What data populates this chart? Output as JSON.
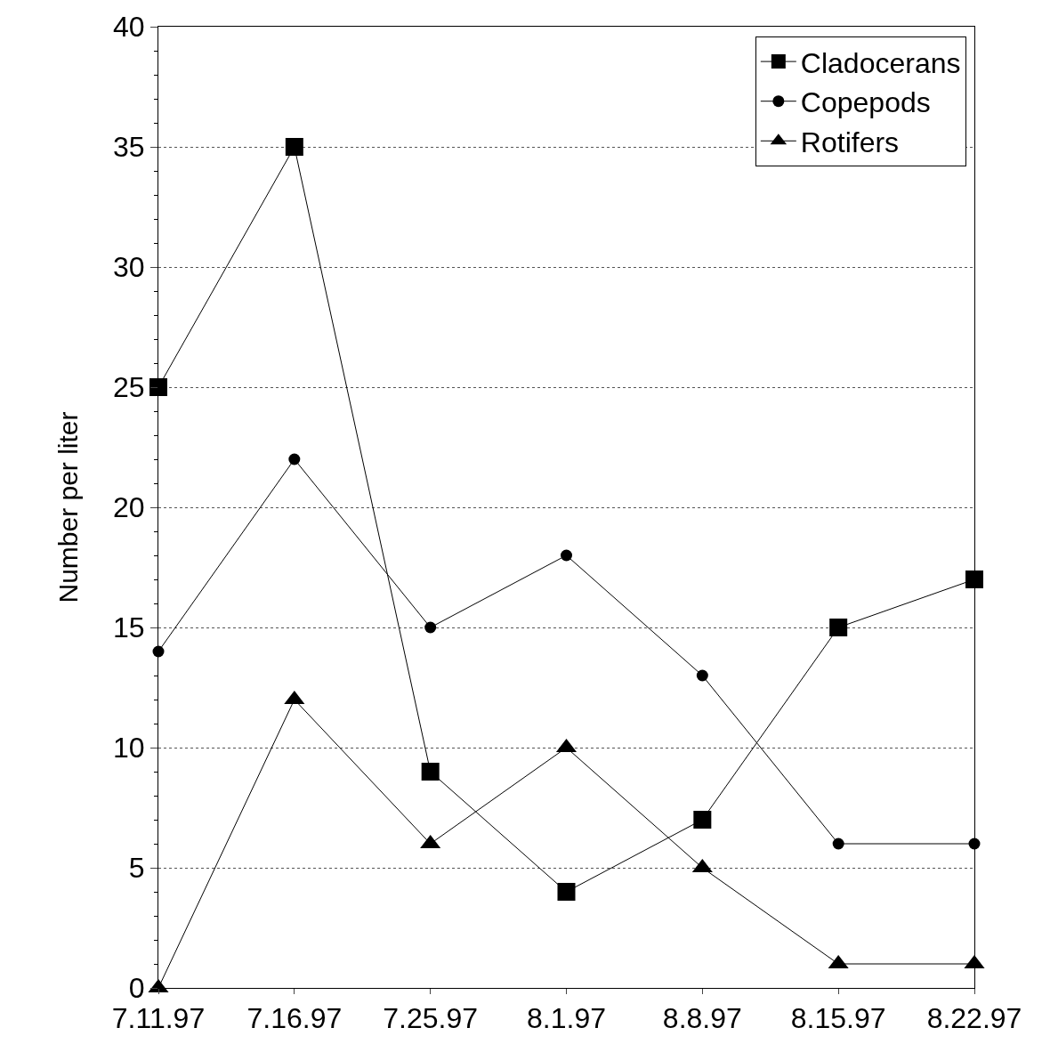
{
  "chart_data": {
    "type": "line",
    "ylabel": "Number per liter",
    "categories": [
      "7.11.97",
      "7.16.97",
      "7.25.97",
      "8.1.97",
      "8.8.97",
      "8.15.97",
      "8.22.97"
    ],
    "series": [
      {
        "name": "Cladocerans",
        "color": "#000000",
        "marker": "square",
        "values": [
          25,
          35,
          9,
          4,
          7,
          15,
          17
        ]
      },
      {
        "name": "Copepods",
        "color": "#000000",
        "marker": "circle",
        "values": [
          14,
          22,
          15,
          18,
          13,
          6,
          6
        ]
      },
      {
        "name": "Rotifers",
        "color": "#000000",
        "marker": "triangle",
        "values": [
          0,
          12,
          6,
          10,
          5,
          1,
          1
        ]
      }
    ],
    "ylim": [
      0,
      40
    ],
    "yticks": [
      0,
      5,
      10,
      15,
      20,
      25,
      30,
      35,
      40
    ],
    "grid": "y",
    "legend": "top right",
    "line_style": "solid"
  }
}
